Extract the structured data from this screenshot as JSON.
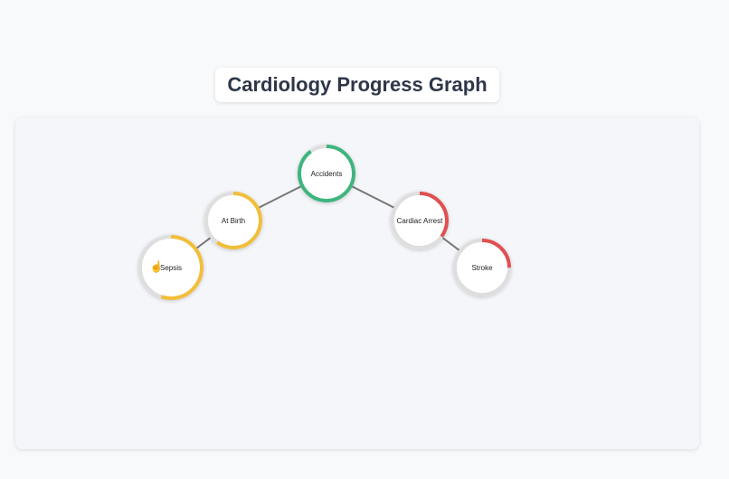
{
  "title": "Cardiology Progress Graph",
  "colors": {
    "green": "#3fb57e",
    "yellow": "#f2be3a",
    "red": "#e05050",
    "track": "#dedede",
    "edge": "#777777"
  },
  "nodes": [
    {
      "id": "accidents",
      "label": "Accidents",
      "progress": 0.9,
      "color": "green"
    },
    {
      "id": "at-birth",
      "label": "At Birth",
      "progress": 0.6,
      "color": "yellow"
    },
    {
      "id": "sepsis",
      "label": "Sepsis",
      "progress": 0.55,
      "color": "yellow",
      "hovered": true
    },
    {
      "id": "cardiac-arrest",
      "label": "Cardiac Arrest",
      "progress": 0.35,
      "color": "red"
    },
    {
      "id": "stroke",
      "label": "Stroke",
      "progress": 0.25,
      "color": "red"
    }
  ],
  "edges": [
    [
      "accidents",
      "at-birth"
    ],
    [
      "at-birth",
      "sepsis"
    ],
    [
      "accidents",
      "cardiac-arrest"
    ],
    [
      "cardiac-arrest",
      "stroke"
    ]
  ]
}
